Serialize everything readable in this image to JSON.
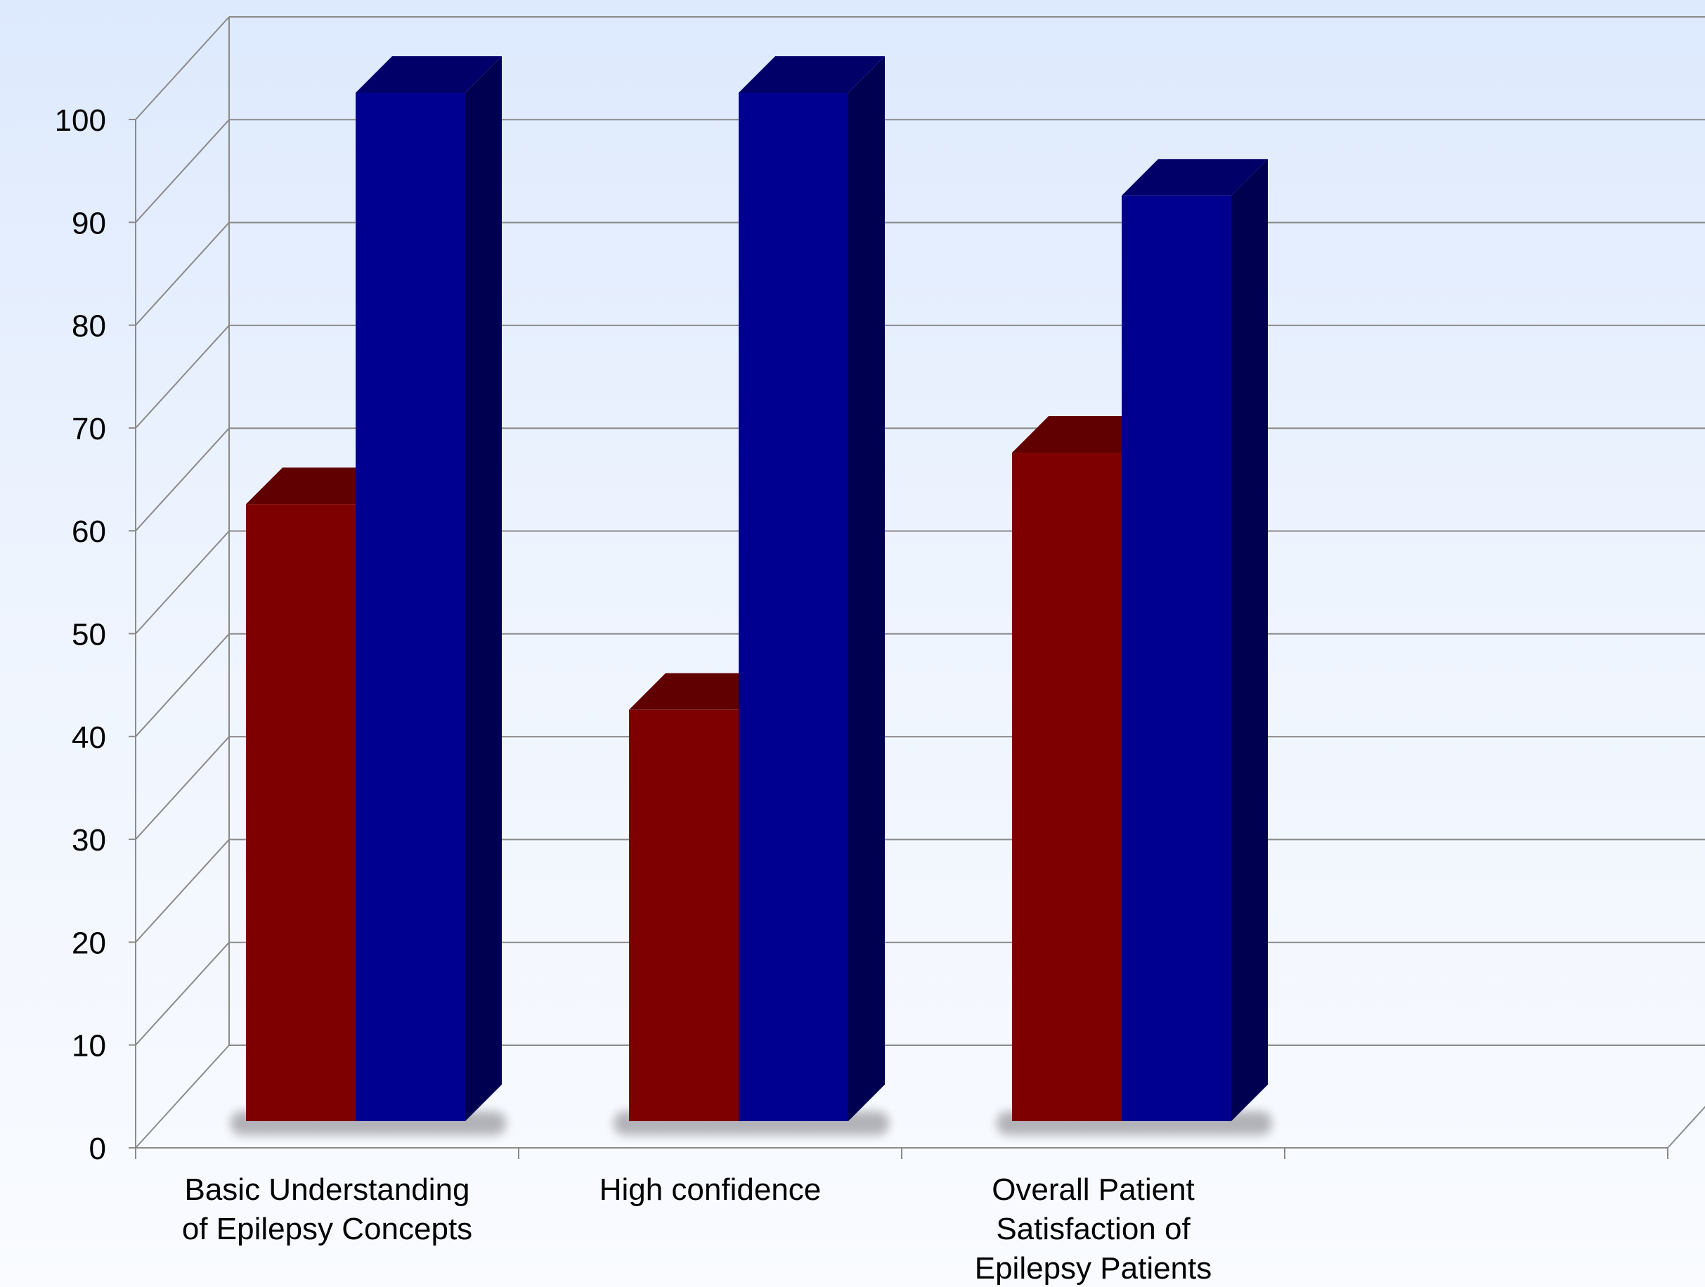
{
  "chart_data": {
    "type": "bar",
    "title": "",
    "xlabel": "",
    "ylabel": "",
    "ylim": [
      0,
      100
    ],
    "yticks": [
      0,
      10,
      20,
      30,
      40,
      50,
      60,
      70,
      80,
      90,
      100
    ],
    "categories": [
      [
        "Basic Understanding",
        "of Epilepsy Concepts"
      ],
      [
        "High confidence"
      ],
      [
        "Overall Patient",
        "Satisfaction of",
        "Epilepsy Patients"
      ]
    ],
    "series": [
      {
        "values": [
          60,
          40,
          65
        ],
        "color": "#7f0000",
        "side_color": "#4a0000",
        "top_color": "#600000"
      },
      {
        "values": [
          100,
          100,
          90
        ],
        "color": "#000090",
        "side_color": "#000050",
        "top_color": "#000068"
      }
    ],
    "legend": "none",
    "grid": true,
    "style": "3d-clustered-column"
  }
}
